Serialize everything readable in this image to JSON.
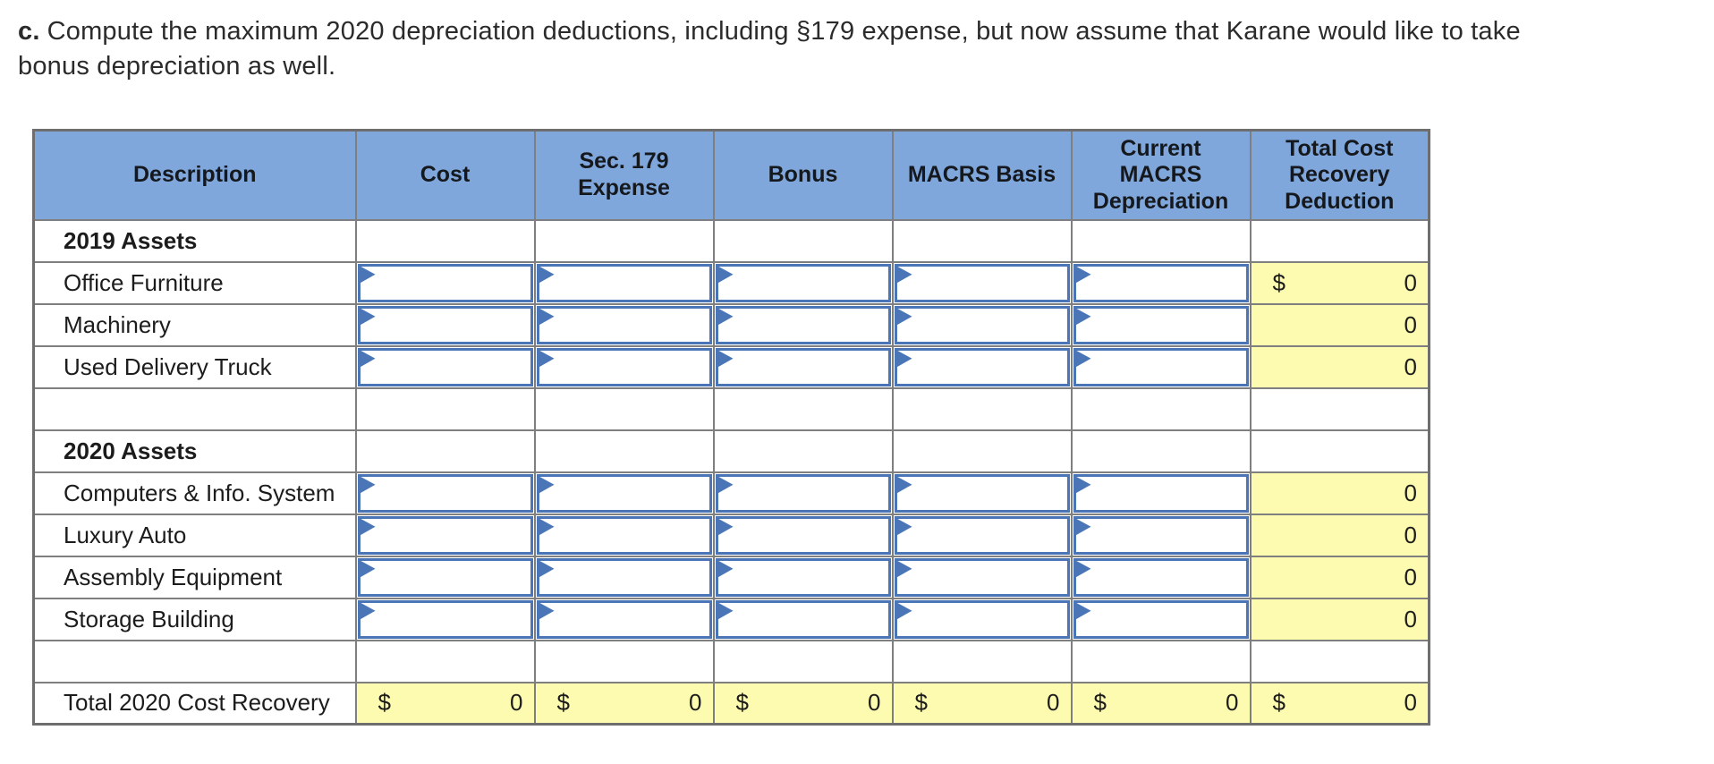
{
  "colors": {
    "header-blue": "#7fa7db",
    "input-blue": "#4a76b8",
    "computed-yellow": "#fdfbb0",
    "grid-gray": "#7f7f7f"
  },
  "prompt": {
    "label": "c.",
    "line1": "Compute the maximum 2020 depreciation deductions, including §179 expense, but now assume that Karane would like to take",
    "line2": "bonus depreciation as well."
  },
  "table": {
    "columns": [
      {
        "label": "Description"
      },
      {
        "label": "Cost"
      },
      {
        "label": "Sec. 179\nExpense"
      },
      {
        "label": "Bonus"
      },
      {
        "label": "MACRS Basis"
      },
      {
        "label": "Current\nMACRS\nDepreciation"
      },
      {
        "label": "Total Cost\nRecovery\nDeduction"
      }
    ],
    "rows": [
      {
        "type": "section",
        "label": "2019 Assets"
      },
      {
        "type": "asset",
        "label": "Office Furniture",
        "total": {
          "dollar": "$",
          "value": "0"
        }
      },
      {
        "type": "asset",
        "label": "Machinery",
        "total": {
          "value": "0"
        }
      },
      {
        "type": "asset",
        "label": "Used Delivery Truck",
        "total": {
          "value": "0"
        }
      },
      {
        "type": "spacer",
        "label": ""
      },
      {
        "type": "section",
        "label": "2020 Assets"
      },
      {
        "type": "asset",
        "label": "Computers & Info. System",
        "total": {
          "value": "0"
        }
      },
      {
        "type": "asset",
        "label": "Luxury Auto",
        "total": {
          "value": "0"
        }
      },
      {
        "type": "asset",
        "label": "Assembly Equipment",
        "total": {
          "value": "0"
        }
      },
      {
        "type": "asset",
        "label": "Storage Building",
        "total": {
          "value": "0"
        }
      },
      {
        "type": "spacer",
        "label": ""
      },
      {
        "type": "total",
        "label": "Total 2020 Cost Recovery",
        "cells": [
          {
            "dollar": "$",
            "value": "0"
          },
          {
            "dollar": "$",
            "value": "0"
          },
          {
            "dollar": "$",
            "value": "0"
          },
          {
            "dollar": "$",
            "value": "0"
          },
          {
            "dollar": "$",
            "value": "0"
          },
          {
            "dollar": "$",
            "value": "0"
          }
        ]
      }
    ]
  }
}
